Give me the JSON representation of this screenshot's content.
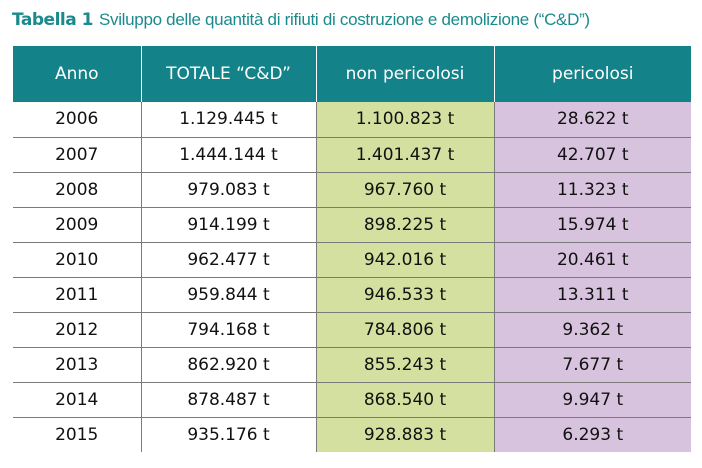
{
  "caption": {
    "label": "Tabella 1",
    "title": "Sviluppo delle quantità di rifiuti di costruzione e demolizione (“C&D”)"
  },
  "table": {
    "headers": [
      "Anno",
      "TOTALE “C&D”",
      "non pericolosi",
      "pericolosi"
    ],
    "rows": [
      {
        "anno": "2006",
        "totale": "1.129.445 t",
        "non_pericolosi": "1.100.823 t",
        "pericolosi": "28.622 t"
      },
      {
        "anno": "2007",
        "totale": "1.444.144 t",
        "non_pericolosi": "1.401.437 t",
        "pericolosi": "42.707 t"
      },
      {
        "anno": "2008",
        "totale": "979.083 t",
        "non_pericolosi": "967.760 t",
        "pericolosi": "11.323 t"
      },
      {
        "anno": "2009",
        "totale": "914.199 t",
        "non_pericolosi": "898.225 t",
        "pericolosi": "15.974 t"
      },
      {
        "anno": "2010",
        "totale": "962.477 t",
        "non_pericolosi": "942.016 t",
        "pericolosi": "20.461 t"
      },
      {
        "anno": "2011",
        "totale": "959.844 t",
        "non_pericolosi": "946.533 t",
        "pericolosi": "13.311 t"
      },
      {
        "anno": "2012",
        "totale": "794.168 t",
        "non_pericolosi": "784.806 t",
        "pericolosi": "9.362 t"
      },
      {
        "anno": "2013",
        "totale": "862.920 t",
        "non_pericolosi": "855.243 t",
        "pericolosi": "7.677 t"
      },
      {
        "anno": "2014",
        "totale": "878.487 t",
        "non_pericolosi": "868.540 t",
        "pericolosi": "9.947 t"
      },
      {
        "anno": "2015",
        "totale": "935.176 t",
        "non_pericolosi": "928.883 t",
        "pericolosi": "6.293 t"
      }
    ]
  },
  "colors": {
    "caption_text": "#1a8a8c",
    "header_bg": "#138389",
    "header_text": "#ffffff",
    "non_pericolosi_bg": "#d4e09f",
    "pericolosi_bg": "#d8c3de",
    "grid_lines": "#7a7a7a"
  }
}
